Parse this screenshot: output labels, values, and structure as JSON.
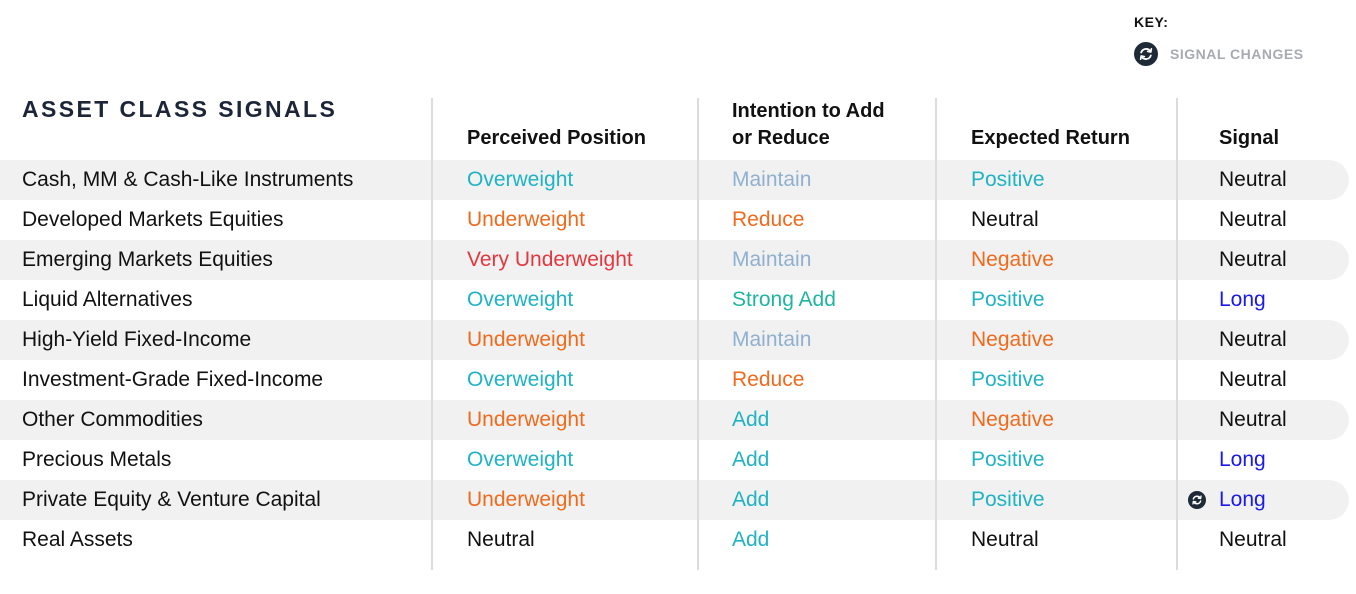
{
  "key": {
    "title": "KEY:",
    "icon": "signal-change-icon",
    "label": "SIGNAL CHANGES"
  },
  "title": "ASSET CLASS SIGNALS",
  "columns": {
    "perceived_position": "Perceived Position",
    "intention_line1": "Intention to Add",
    "intention_line2": "or Reduce",
    "expected_return": "Expected Return",
    "signal": "Signal"
  },
  "colors": {
    "teal": "#1fb3c4",
    "orange": "#ee6a1c",
    "red": "#e0383e",
    "light_blue": "#8fb0d0",
    "green": "#20b59e",
    "blue": "#1a1ae6",
    "black": "#111111"
  },
  "rows": [
    {
      "name": "Cash, MM & Cash-Like Instruments",
      "position": "Overweight",
      "position_color": "#1fb3c4",
      "intention": "Maintain",
      "intention_color": "#8fb0d0",
      "return": "Positive",
      "return_color": "#1fb3c4",
      "signal": "Neutral",
      "signal_color": "#111111",
      "signal_changed": false
    },
    {
      "name": "Developed Markets Equities",
      "position": "Underweight",
      "position_color": "#ee6a1c",
      "intention": "Reduce",
      "intention_color": "#ee6a1c",
      "return": "Neutral",
      "return_color": "#111111",
      "signal": "Neutral",
      "signal_color": "#111111",
      "signal_changed": false
    },
    {
      "name": "Emerging Markets Equities",
      "position": "Very Underweight",
      "position_color": "#e0383e",
      "intention": "Maintain",
      "intention_color": "#8fb0d0",
      "return": "Negative",
      "return_color": "#ee6a1c",
      "signal": "Neutral",
      "signal_color": "#111111",
      "signal_changed": false
    },
    {
      "name": "Liquid Alternatives",
      "position": "Overweight",
      "position_color": "#1fb3c4",
      "intention": "Strong Add",
      "intention_color": "#20b59e",
      "return": "Positive",
      "return_color": "#1fb3c4",
      "signal": "Long",
      "signal_color": "#1a1ae6",
      "signal_changed": false
    },
    {
      "name": "High-Yield Fixed-Income",
      "position": "Underweight",
      "position_color": "#ee6a1c",
      "intention": "Maintain",
      "intention_color": "#8fb0d0",
      "return": "Negative",
      "return_color": "#ee6a1c",
      "signal": "Neutral",
      "signal_color": "#111111",
      "signal_changed": false
    },
    {
      "name": "Investment-Grade Fixed-Income",
      "position": "Overweight",
      "position_color": "#1fb3c4",
      "intention": "Reduce",
      "intention_color": "#ee6a1c",
      "return": "Positive",
      "return_color": "#1fb3c4",
      "signal": "Neutral",
      "signal_color": "#111111",
      "signal_changed": false
    },
    {
      "name": "Other Commodities",
      "position": "Underweight",
      "position_color": "#ee6a1c",
      "intention": "Add",
      "intention_color": "#1fb3c4",
      "return": "Negative",
      "return_color": "#ee6a1c",
      "signal": "Neutral",
      "signal_color": "#111111",
      "signal_changed": false
    },
    {
      "name": "Precious Metals",
      "position": "Overweight",
      "position_color": "#1fb3c4",
      "intention": "Add",
      "intention_color": "#1fb3c4",
      "return": "Positive",
      "return_color": "#1fb3c4",
      "signal": "Long",
      "signal_color": "#1a1ae6",
      "signal_changed": false
    },
    {
      "name": "Private Equity & Venture Capital",
      "position": "Underweight",
      "position_color": "#ee6a1c",
      "intention": "Add",
      "intention_color": "#1fb3c4",
      "return": "Positive",
      "return_color": "#1fb3c4",
      "signal": "Long",
      "signal_color": "#1a1ae6",
      "signal_changed": true
    },
    {
      "name": "Real Assets",
      "position": "Neutral",
      "position_color": "#111111",
      "intention": "Add",
      "intention_color": "#1fb3c4",
      "return": "Neutral",
      "return_color": "#111111",
      "signal": "Neutral",
      "signal_color": "#111111",
      "signal_changed": false
    }
  ]
}
